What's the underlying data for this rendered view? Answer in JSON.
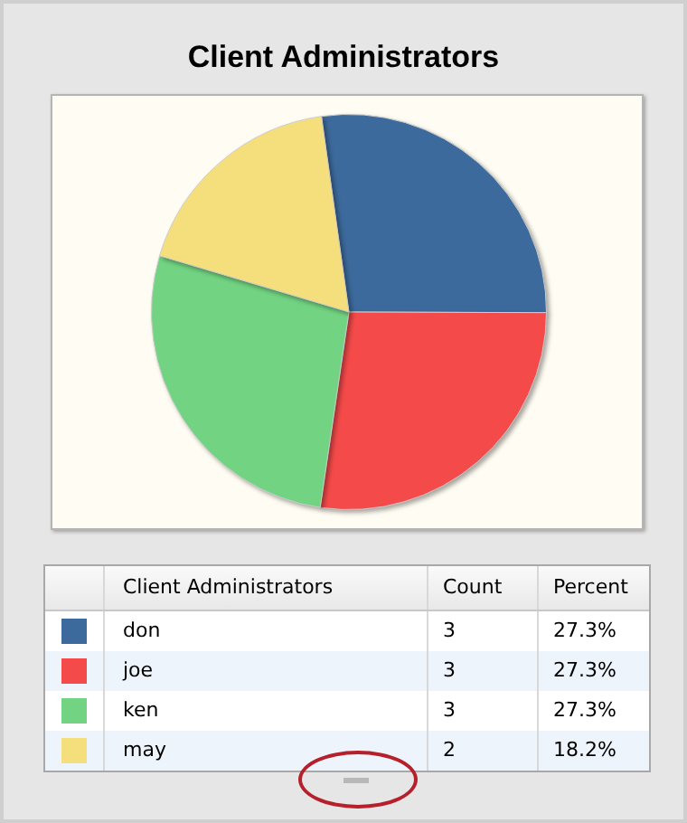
{
  "chart_data": {
    "type": "pie",
    "title": "Client Administrators",
    "legend_title": "Client Administrators",
    "categories": [
      "don",
      "joe",
      "ken",
      "may"
    ],
    "values": [
      27.3,
      27.3,
      27.3,
      18.2
    ],
    "colors": [
      "#3c6a9c",
      "#f54a4a",
      "#72d482",
      "#f4df7c"
    ],
    "value_labels": [
      "27.3%",
      "27.3%",
      "27.3%",
      "18.2%"
    ],
    "legend": "bottom",
    "annotations": [
      "Count",
      "Percent",
      "3",
      "3",
      "3",
      "2"
    ]
  }
}
